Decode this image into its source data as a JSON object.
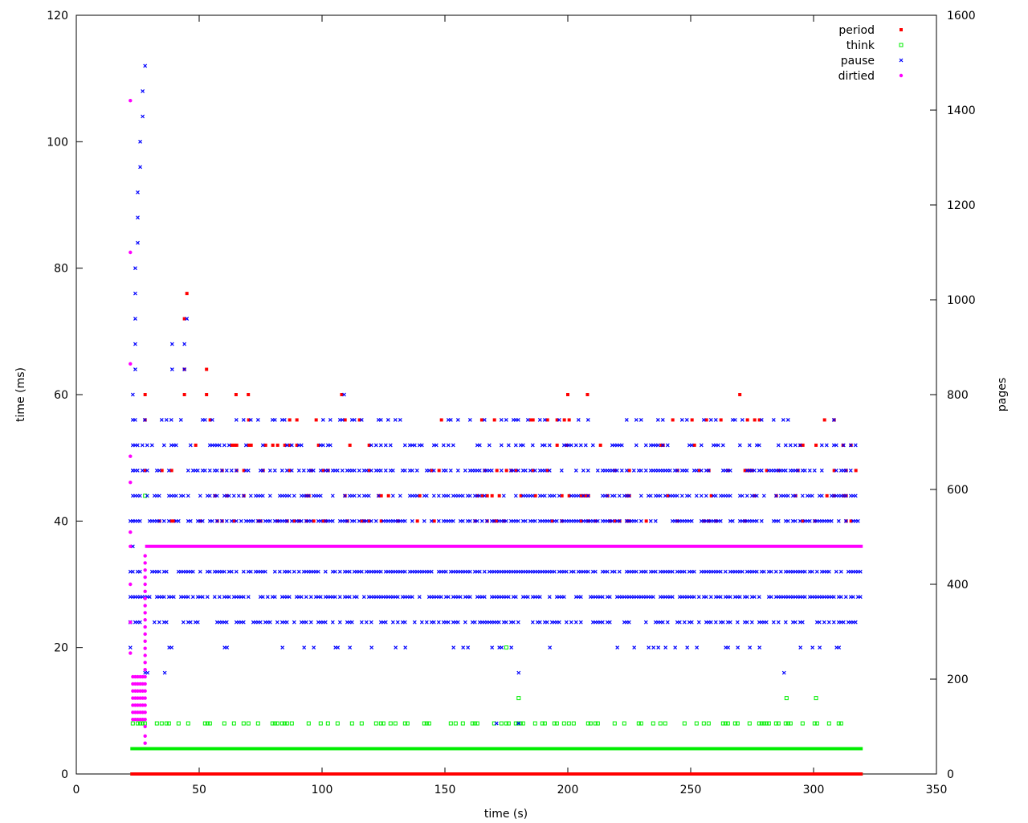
{
  "chart_data": {
    "type": "scatter",
    "xlabel": "time (s)",
    "ylabel": "time (ms)",
    "y2label": "pages",
    "xlim": [
      0,
      350
    ],
    "ylim": [
      0,
      120
    ],
    "y2lim": [
      0,
      1600
    ],
    "xticks": [
      "0",
      "50",
      "100",
      "150",
      "200",
      "250",
      "300",
      "350"
    ],
    "yticks": [
      "0",
      "20",
      "40",
      "60",
      "80",
      "100",
      "120"
    ],
    "y2ticks": [
      "0",
      "200",
      "400",
      "600",
      "800",
      "1000",
      "1200",
      "1400",
      "1600"
    ],
    "grid": false,
    "legend_position": "top-right",
    "series": [
      {
        "name": "period",
        "color": "#ff0000",
        "marker": "filled-square",
        "bands": [
          {
            "y": 0,
            "x": [
              22,
              320
            ],
            "density": 1.0
          },
          {
            "y": 40,
            "x": [
              28,
              320
            ],
            "density": 0.15
          },
          {
            "y": 44,
            "x": [
              28,
              320
            ],
            "density": 0.1
          },
          {
            "y": 48,
            "x": [
              28,
              320
            ],
            "density": 0.1
          },
          {
            "y": 52,
            "x": [
              28,
              320
            ],
            "density": 0.06
          },
          {
            "y": 56,
            "x": [
              28,
              320
            ],
            "density": 0.06
          }
        ],
        "points": [
          [
            24,
            0
          ],
          [
            28,
            60
          ],
          [
            28,
            56
          ],
          [
            28,
            48
          ],
          [
            53,
            60
          ],
          [
            65,
            60
          ],
          [
            70,
            60
          ],
          [
            108,
            60
          ],
          [
            165,
            56
          ],
          [
            185,
            56
          ],
          [
            200,
            60
          ],
          [
            208,
            60
          ],
          [
            270,
            60
          ],
          [
            238,
            52
          ],
          [
            301,
            52
          ],
          [
            312,
            52
          ],
          [
            45,
            76
          ],
          [
            44,
            72
          ],
          [
            44,
            60
          ],
          [
            44,
            64
          ],
          [
            53,
            64
          ]
        ]
      },
      {
        "name": "think",
        "color": "#00ee00",
        "marker": "open-square",
        "bands": [
          {
            "y": 0,
            "x": [
              22,
              320
            ],
            "density": 1.0
          },
          {
            "y": 4,
            "x": [
              22,
              320
            ],
            "density": 1.0
          },
          {
            "y": 8,
            "x": [
              22,
              320
            ],
            "density": 0.35
          }
        ],
        "points": [
          [
            175,
            20
          ],
          [
            180,
            12
          ],
          [
            289,
            12
          ],
          [
            301,
            12
          ],
          [
            28,
            44
          ],
          [
            25,
            8
          ],
          [
            26,
            8
          ],
          [
            27,
            8
          ]
        ]
      },
      {
        "name": "pause",
        "color": "#0000ff",
        "marker": "x",
        "bands": [
          {
            "y": 20,
            "x": [
              28,
              316
            ],
            "density": 0.12
          },
          {
            "y": 24,
            "x": [
              22,
              318
            ],
            "density": 0.55
          },
          {
            "y": 28,
            "x": [
              22,
              320
            ],
            "density": 0.75
          },
          {
            "y": 32,
            "x": [
              22,
              320
            ],
            "density": 0.75
          },
          {
            "y": 40,
            "x": [
              22,
              320
            ],
            "density": 0.65
          },
          {
            "y": 44,
            "x": [
              22,
              320
            ],
            "density": 0.55
          },
          {
            "y": 48,
            "x": [
              22,
              320
            ],
            "density": 0.5
          },
          {
            "y": 52,
            "x": [
              22,
              318
            ],
            "density": 0.3
          },
          {
            "y": 56,
            "x": [
              22,
              318
            ],
            "density": 0.2
          }
        ],
        "points": [
          [
            22,
            20
          ],
          [
            22,
            24
          ],
          [
            23,
            28
          ],
          [
            23,
            32
          ],
          [
            23,
            36
          ],
          [
            23,
            40
          ],
          [
            23,
            44
          ],
          [
            23,
            48
          ],
          [
            23,
            52
          ],
          [
            23,
            56
          ],
          [
            23,
            60
          ],
          [
            24,
            64
          ],
          [
            24,
            68
          ],
          [
            24,
            72
          ],
          [
            24,
            76
          ],
          [
            24,
            80
          ],
          [
            25,
            84
          ],
          [
            25,
            88
          ],
          [
            25,
            92
          ],
          [
            26,
            96
          ],
          [
            26,
            100
          ],
          [
            27,
            104
          ],
          [
            27,
            108
          ],
          [
            28,
            112
          ],
          [
            28,
            16
          ],
          [
            29,
            16
          ],
          [
            36,
            16
          ],
          [
            180,
            16
          ],
          [
            288,
            16
          ],
          [
            39,
            64
          ],
          [
            39,
            68
          ],
          [
            44,
            64
          ],
          [
            44,
            68
          ],
          [
            45,
            72
          ],
          [
            109,
            60
          ],
          [
            171,
            8
          ],
          [
            180,
            8
          ]
        ]
      },
      {
        "name": "dirtied",
        "color": "#ff00ff",
        "marker": "dot",
        "axis": "y2",
        "line": {
          "y2": 480,
          "x": [
            28,
            320
          ]
        },
        "points": [
          [
            22,
            1420
          ],
          [
            22,
            1100
          ],
          [
            22,
            865
          ],
          [
            22,
            670
          ],
          [
            22,
            615
          ],
          [
            22,
            510
          ],
          [
            22,
            480
          ],
          [
            22,
            400
          ],
          [
            22,
            320
          ],
          [
            22,
            255
          ],
          [
            23,
            205
          ],
          [
            23,
            190
          ],
          [
            23,
            175
          ],
          [
            23,
            160
          ],
          [
            23,
            145
          ],
          [
            23,
            130
          ],
          [
            23,
            115
          ],
          [
            24,
            205
          ],
          [
            24,
            190
          ],
          [
            24,
            175
          ],
          [
            24,
            160
          ],
          [
            24,
            145
          ],
          [
            24,
            130
          ],
          [
            24,
            115
          ],
          [
            25,
            205
          ],
          [
            25,
            190
          ],
          [
            25,
            175
          ],
          [
            25,
            160
          ],
          [
            25,
            145
          ],
          [
            25,
            130
          ],
          [
            25,
            115
          ],
          [
            26,
            205
          ],
          [
            26,
            190
          ],
          [
            26,
            175
          ],
          [
            26,
            160
          ],
          [
            26,
            145
          ],
          [
            26,
            130
          ],
          [
            26,
            115
          ],
          [
            27,
            205
          ],
          [
            27,
            190
          ],
          [
            27,
            175
          ],
          [
            27,
            160
          ],
          [
            27,
            145
          ],
          [
            27,
            130
          ],
          [
            27,
            115
          ],
          [
            28,
            460
          ],
          [
            28,
            445
          ],
          [
            28,
            430
          ],
          [
            28,
            415
          ],
          [
            28,
            400
          ],
          [
            28,
            385
          ],
          [
            28,
            370
          ],
          [
            28,
            355
          ],
          [
            28,
            340
          ],
          [
            28,
            325
          ],
          [
            28,
            310
          ],
          [
            28,
            295
          ],
          [
            28,
            280
          ],
          [
            28,
            265
          ],
          [
            28,
            250
          ],
          [
            28,
            235
          ],
          [
            28,
            220
          ],
          [
            28,
            205
          ],
          [
            28,
            190
          ],
          [
            28,
            175
          ],
          [
            28,
            160
          ],
          [
            28,
            145
          ],
          [
            28,
            130
          ],
          [
            28,
            115
          ],
          [
            28,
            100
          ],
          [
            28,
            80
          ],
          [
            28,
            65
          ]
        ]
      }
    ]
  }
}
